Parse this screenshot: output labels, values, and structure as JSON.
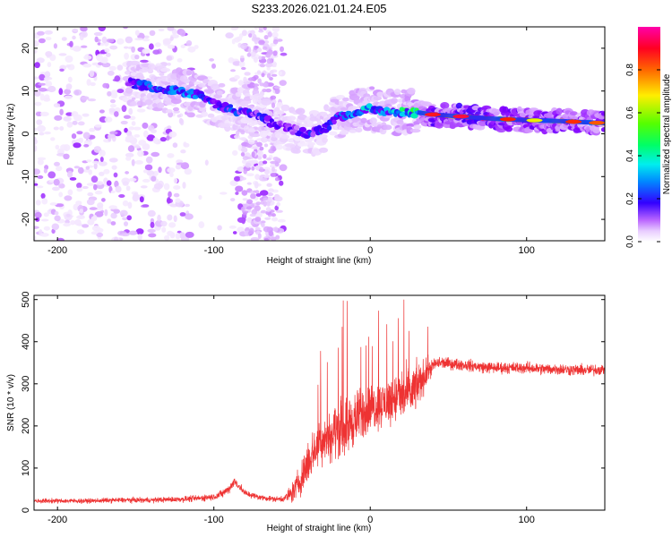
{
  "figure_title": "S233.2026.021.01.24.E05",
  "chart_data": [
    {
      "id": "spectrogram",
      "type": "heatmap",
      "title": "",
      "xlabel": "Height of straight line (km)",
      "ylabel": "Frequency (Hz)",
      "xlim": [
        -215,
        150
      ],
      "ylim": [
        -25,
        25
      ],
      "xticks": [
        -200,
        -100,
        0,
        100
      ],
      "yticks": [
        -20,
        -10,
        0,
        10,
        20
      ],
      "colorbar": {
        "label": "Normalized spectral amplitude",
        "range": [
          0,
          1
        ],
        "ticks": [
          0.0,
          0.2,
          0.4,
          0.6,
          0.8
        ],
        "colormap": [
          "#ffffff",
          "#e8ccff",
          "#cc88ff",
          "#8800ff",
          "#3300ff",
          "#0066ff",
          "#00ccff",
          "#00ff99",
          "#33ff00",
          "#aaff00",
          "#ffee00",
          "#ff8800",
          "#ff2200",
          "#ff0066",
          "#ff00aa"
        ]
      },
      "ridge": {
        "description_points_x": [
          -155,
          -140,
          -125,
          -110,
          -100,
          -90,
          -80,
          -70,
          -60,
          -50,
          -40,
          -30,
          -20,
          -10,
          0,
          10,
          20,
          30,
          40,
          60,
          80,
          100,
          120,
          150
        ],
        "frequency_hz": [
          12,
          11,
          10,
          9,
          7,
          6,
          5,
          4,
          2,
          1,
          0,
          1,
          4,
          5,
          6,
          5,
          5,
          5,
          4.5,
          4,
          3.5,
          3.2,
          3,
          2.5
        ],
        "peak_amplitude": [
          0.3,
          0.35,
          0.4,
          0.4,
          0.35,
          0.35,
          0.3,
          0.3,
          0.25,
          0.25,
          0.3,
          0.3,
          0.35,
          0.4,
          0.45,
          0.45,
          0.5,
          0.55,
          0.9,
          0.95,
          0.9,
          0.85,
          0.8,
          0.8
        ]
      }
    },
    {
      "id": "snr",
      "type": "line",
      "title": "",
      "xlabel": "Height of straight line (km)",
      "ylabel": "SNR (10 * v/v)",
      "xlim": [
        -215,
        150
      ],
      "ylim": [
        0,
        510
      ],
      "xticks": [
        -200,
        -100,
        0,
        100
      ],
      "yticks": [
        0,
        100,
        200,
        300,
        400,
        500
      ],
      "color": "#ee3333",
      "series": [
        {
          "name": "SNR",
          "x": [
            -215,
            -200,
            -180,
            -160,
            -140,
            -120,
            -110,
            -100,
            -95,
            -90,
            -87,
            -85,
            -80,
            -70,
            -60,
            -55,
            -50,
            -45,
            -40,
            -35,
            -30,
            -25,
            -20,
            -15,
            -10,
            -5,
            0,
            5,
            10,
            15,
            20,
            25,
            30,
            35,
            40,
            45,
            50,
            60,
            70,
            80,
            90,
            100,
            110,
            120,
            130,
            140,
            150
          ],
          "mean": [
            22,
            22,
            22,
            24,
            24,
            26,
            28,
            32,
            38,
            52,
            68,
            62,
            40,
            30,
            26,
            28,
            40,
            70,
            110,
            150,
            170,
            180,
            195,
            200,
            215,
            230,
            240,
            250,
            255,
            265,
            270,
            275,
            295,
            320,
            345,
            350,
            348,
            345,
            340,
            338,
            338,
            338,
            335,
            335,
            333,
            332,
            335
          ],
          "spread": [
            8,
            8,
            8,
            9,
            9,
            10,
            11,
            12,
            14,
            16,
            18,
            16,
            12,
            10,
            9,
            12,
            35,
            55,
            65,
            75,
            85,
            90,
            100,
            100,
            95,
            90,
            85,
            80,
            80,
            85,
            90,
            90,
            80,
            55,
            25,
            22,
            20,
            20,
            20,
            20,
            20,
            20,
            20,
            20,
            20,
            20,
            20
          ]
        }
      ]
    }
  ]
}
